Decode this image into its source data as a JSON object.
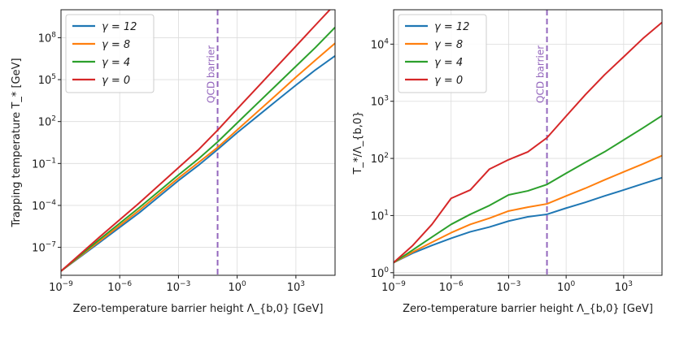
{
  "chart_data": [
    {
      "type": "line",
      "xscale": "log",
      "yscale": "log",
      "xlim": [
        1e-09,
        100000.0
      ],
      "ylim": [
        1e-09,
        10000000000.0
      ],
      "xlabel": "Zero-temperature barrier height Λ_{b,0} [GeV]",
      "ylabel": "Trapping temperature T_* [GeV]",
      "xticks": [
        {
          "value": 1e-09,
          "base": "10",
          "exp": "−9"
        },
        {
          "value": 1e-06,
          "base": "10",
          "exp": "−6"
        },
        {
          "value": 0.001,
          "base": "10",
          "exp": "−3"
        },
        {
          "value": 1,
          "base": "10",
          "exp": "0"
        },
        {
          "value": 1000,
          "base": "10",
          "exp": "3"
        }
      ],
      "yticks": [
        {
          "value": 1e-07,
          "base": "10",
          "exp": "−7"
        },
        {
          "value": 0.0001,
          "base": "10",
          "exp": "−4"
        },
        {
          "value": 0.1,
          "base": "10",
          "exp": "−1"
        },
        {
          "value": 100,
          "base": "10",
          "exp": "2"
        },
        {
          "value": 100000,
          "base": "10",
          "exp": "5"
        },
        {
          "value": 100000000.0,
          "base": "10",
          "exp": "8"
        }
      ],
      "grid": true,
      "legend_position": "upper-left",
      "annotation": {
        "text": "QCD barrier",
        "x": 0.1
      },
      "series": [
        {
          "name": "γ = 12",
          "color": "#1f77b4",
          "x": [
            1e-09,
            1e-07,
            1e-05,
            0.001,
            0.01,
            0.1,
            1,
            10,
            100,
            1000,
            10000,
            100000
          ],
          "y": [
            2e-09,
            2.4e-07,
            3e-05,
            0.006,
            0.07,
            1.0,
            16,
            220,
            3000,
            40000,
            500000.0,
            5000000.0
          ]
        },
        {
          "name": "γ = 8",
          "color": "#ff7f0e",
          "x": [
            1e-09,
            1e-07,
            1e-05,
            0.001,
            0.01,
            0.1,
            1,
            10,
            100,
            1000,
            10000,
            100000
          ],
          "y": [
            2e-09,
            3e-07,
            4.5e-05,
            0.009,
            0.11,
            1.4,
            25,
            450,
            8000,
            150000,
            2500000.0,
            40000000.0
          ]
        },
        {
          "name": "γ = 4",
          "color": "#2ca02c",
          "x": [
            1e-09,
            1e-07,
            1e-05,
            0.001,
            0.01,
            0.1,
            1,
            10,
            100,
            1000,
            10000,
            100000
          ],
          "y": [
            2e-09,
            4e-07,
            7e-05,
            0.015,
            0.2,
            3.5,
            80,
            1800,
            40000,
            900000,
            20000000.0,
            550000000.0
          ]
        },
        {
          "name": "γ = 0",
          "color": "#d62728",
          "x": [
            1e-09,
            1e-07,
            1e-05,
            0.001,
            0.01,
            0.1,
            1,
            10,
            100,
            1000,
            10000,
            100000
          ],
          "y": [
            2e-09,
            6e-07,
            0.00015,
            0.05,
            0.9,
            24,
            800,
            25000,
            800000.0,
            25000000.0,
            800000000.0,
            25000000000.0
          ]
        }
      ]
    },
    {
      "type": "line",
      "xscale": "log",
      "yscale": "log",
      "xlim": [
        1e-09,
        100000.0
      ],
      "ylim": [
        0.9,
        40000
      ],
      "xlabel": "Zero-temperature barrier height Λ_{b,0} [GeV]",
      "ylabel": "T_*/Λ_{b,0}",
      "xticks": [
        {
          "value": 1e-09,
          "base": "10",
          "exp": "−9"
        },
        {
          "value": 1e-06,
          "base": "10",
          "exp": "−6"
        },
        {
          "value": 0.001,
          "base": "10",
          "exp": "−3"
        },
        {
          "value": 1,
          "base": "10",
          "exp": "0"
        },
        {
          "value": 1000,
          "base": "10",
          "exp": "3"
        }
      ],
      "yticks": [
        {
          "value": 1,
          "base": "10",
          "exp": "0"
        },
        {
          "value": 10,
          "base": "10",
          "exp": "1"
        },
        {
          "value": 100,
          "base": "10",
          "exp": "2"
        },
        {
          "value": 1000,
          "base": "10",
          "exp": "3"
        },
        {
          "value": 10000,
          "base": "10",
          "exp": "4"
        }
      ],
      "grid": true,
      "legend_position": "upper-left",
      "annotation": {
        "text": "QCD barrier",
        "x": 0.1
      },
      "series": [
        {
          "name": "γ = 12",
          "color": "#1f77b4",
          "x": [
            1e-09,
            1e-08,
            1e-07,
            1e-06,
            1e-05,
            0.0001,
            0.001,
            0.01,
            0.1,
            1,
            10,
            100,
            1000,
            10000,
            100000
          ],
          "y": [
            1.5,
            2.2,
            3.0,
            4.0,
            5.2,
            6.3,
            8.0,
            9.5,
            10.5,
            13.5,
            17,
            22,
            28,
            36,
            46
          ]
        },
        {
          "name": "γ = 8",
          "color": "#ff7f0e",
          "x": [
            1e-09,
            1e-08,
            1e-07,
            1e-06,
            1e-05,
            0.0001,
            0.001,
            0.01,
            0.1,
            1,
            10,
            100,
            1000,
            10000,
            100000
          ],
          "y": [
            1.5,
            2.3,
            3.4,
            5.0,
            7.0,
            9.0,
            12,
            14,
            16,
            22,
            30,
            42,
            58,
            80,
            112
          ]
        },
        {
          "name": "γ = 4",
          "color": "#2ca02c",
          "x": [
            1e-09,
            1e-08,
            1e-07,
            1e-06,
            1e-05,
            0.0001,
            0.001,
            0.01,
            0.1,
            1,
            10,
            100,
            1000,
            10000,
            100000
          ],
          "y": [
            1.5,
            2.5,
            4.2,
            7.0,
            10.5,
            15,
            23,
            27,
            35,
            55,
            85,
            130,
            210,
            340,
            560
          ]
        },
        {
          "name": "γ = 0",
          "color": "#d62728",
          "x": [
            1e-09,
            1e-08,
            1e-07,
            1e-06,
            1e-05,
            0.0001,
            0.001,
            0.01,
            0.1,
            1,
            10,
            100,
            1000,
            10000,
            100000
          ],
          "y": [
            1.5,
            3.0,
            7.0,
            20,
            28,
            65,
            95,
            130,
            230,
            550,
            1300,
            2900,
            6000,
            12500,
            24000
          ]
        }
      ]
    }
  ]
}
